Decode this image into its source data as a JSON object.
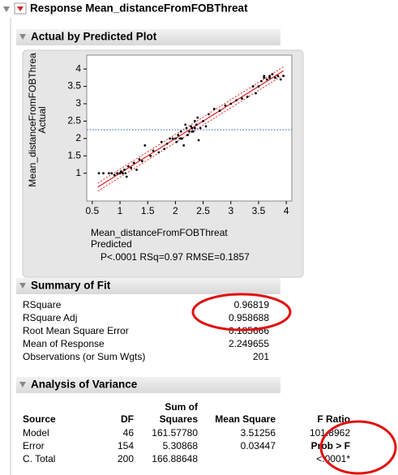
{
  "header": {
    "title": "Response Mean_distanceFromFOBThreat"
  },
  "plot": {
    "title": "Actual by Predicted Plot",
    "y_label": [
      "Mean_distanceFromFOBThrea",
      "Actual"
    ],
    "x_label": [
      "Mean_distanceFromFOBThreat",
      "Predicted"
    ],
    "stats": "P<.0001 RSq=0.97 RMSE=0.1857"
  },
  "chart_data": {
    "type": "scatter",
    "x": [
      0.62,
      0.7,
      0.8,
      0.85,
      0.9,
      0.95,
      1.0,
      1.02,
      1.05,
      1.08,
      1.1,
      1.12,
      1.15,
      1.2,
      1.25,
      1.3,
      1.35,
      1.4,
      1.45,
      1.55,
      1.6,
      1.7,
      1.75,
      1.8,
      1.85,
      1.9,
      1.95,
      2.0,
      2.02,
      2.05,
      2.08,
      2.1,
      2.12,
      2.15,
      2.18,
      2.2,
      2.22,
      2.25,
      2.28,
      2.3,
      2.32,
      2.35,
      2.38,
      2.4,
      2.42,
      2.45,
      2.5,
      2.55,
      2.6,
      2.7,
      2.8,
      2.9,
      3.0,
      3.1,
      3.2,
      3.3,
      3.4,
      3.45,
      3.5,
      3.55,
      3.6,
      3.65,
      3.7,
      3.75,
      3.8,
      3.85,
      3.9,
      3.95,
      1.0,
      1.05,
      2.0,
      2.1,
      2.3,
      2.35,
      3.6,
      3.7
    ],
    "y": [
      1.0,
      1.0,
      1.0,
      1.0,
      0.95,
      1.0,
      1.0,
      1.05,
      1.0,
      1.1,
      1.0,
      0.9,
      1.2,
      1.15,
      1.3,
      1.1,
      1.4,
      1.35,
      1.8,
      1.5,
      1.65,
      1.6,
      1.9,
      1.7,
      1.85,
      2.0,
      2.0,
      2.0,
      1.9,
      2.1,
      2.0,
      2.2,
      2.0,
      1.8,
      2.4,
      2.3,
      2.1,
      2.2,
      2.35,
      2.3,
      2.2,
      2.5,
      2.4,
      2.6,
      1.95,
      2.3,
      2.5,
      2.35,
      2.7,
      2.85,
      2.8,
      2.95,
      3.0,
      3.1,
      3.15,
      3.2,
      3.5,
      3.3,
      3.5,
      3.65,
      3.75,
      3.7,
      3.8,
      3.85,
      3.75,
      3.8,
      3.7,
      3.8,
      1.0,
      1.0,
      2.0,
      2.0,
      2.2,
      2.3,
      3.8,
      3.75
    ],
    "color": "#000000",
    "xlim": [
      0.4,
      4.1
    ],
    "ylim": [
      0.2,
      4.4
    ],
    "xticks": [
      0.5,
      1,
      1.5,
      2,
      2.5,
      3,
      3.5,
      4
    ],
    "yticks": [
      1,
      1.5,
      2,
      2.5,
      3,
      3.5,
      4
    ],
    "fit_line": {
      "x": [
        0.6,
        3.95
      ],
      "y": [
        0.6,
        3.95
      ],
      "color": "#e02a2a"
    },
    "mean_line": {
      "value": 2.25,
      "color": "#4a7fd6"
    }
  },
  "summary_of_fit": {
    "title": "Summary of Fit",
    "rows": [
      {
        "label": "RSquare",
        "value": "0.96819"
      },
      {
        "label": "RSquare Adj",
        "value": "0.958688"
      },
      {
        "label": "Root Mean Square Error",
        "value": "0.185666"
      },
      {
        "label": "Mean of Response",
        "value": "2.249655"
      },
      {
        "label": "Observations (or Sum Wgts)",
        "value": "201"
      }
    ]
  },
  "analysis_of_variance": {
    "title": "Analysis of Variance",
    "header_top": "Sum of",
    "columns": {
      "source": "Source",
      "df": "DF",
      "ss": "Squares",
      "ms": "Mean Square",
      "f": "F Ratio"
    },
    "rows": [
      {
        "source": "Model",
        "df": "46",
        "ss": "161.57780",
        "ms": "3.51256",
        "f": "101.8962"
      },
      {
        "source": "Error",
        "df": "154",
        "ss": "5.30868",
        "ms": "0.03447",
        "f": "Prob > F"
      },
      {
        "source": "C. Total",
        "df": "200",
        "ss": "166.88648",
        "f": "<.0001*"
      }
    ]
  }
}
